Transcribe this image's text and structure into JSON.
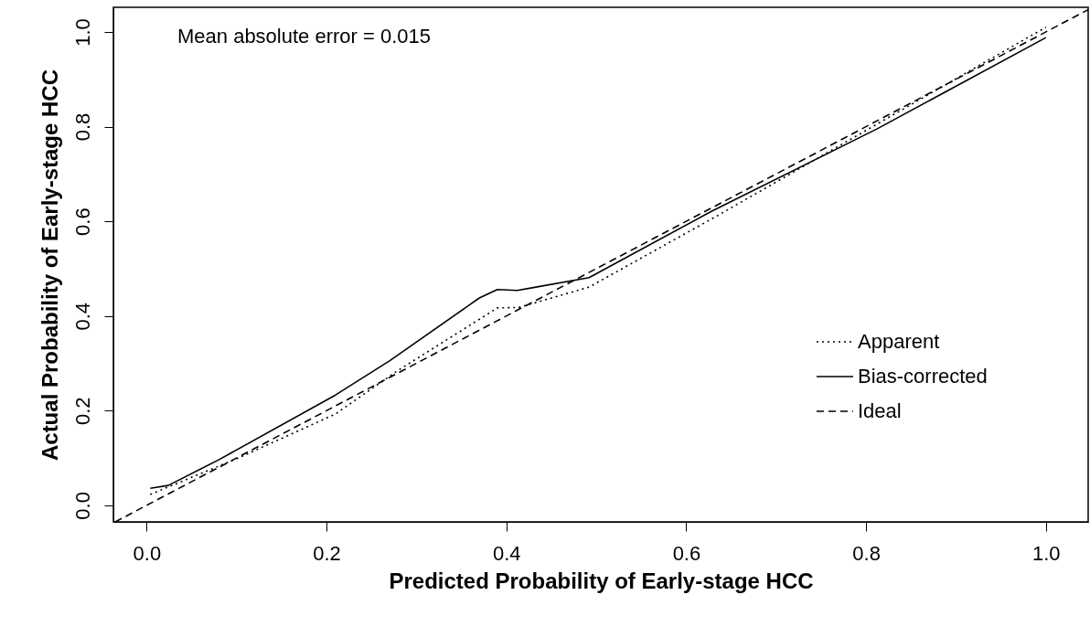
{
  "chart_data": {
    "type": "line",
    "xlabel": "Predicted Probability of Early-stage HCC",
    "ylabel": "Actual Probability of Early-stage HCC",
    "xlim": [
      -0.037,
      1.047
    ],
    "ylim": [
      -0.035,
      1.052
    ],
    "xticks": [
      {
        "value": 0,
        "label": "0.0"
      },
      {
        "value": 0.2,
        "label": "0.2"
      },
      {
        "value": 0.4,
        "label": "0.4"
      },
      {
        "value": 0.6,
        "label": "0.6"
      },
      {
        "value": 0.8,
        "label": "0.8"
      },
      {
        "value": 1,
        "label": "1.0"
      }
    ],
    "yticks": [
      {
        "value": 0,
        "label": "0.0"
      },
      {
        "value": 0.2,
        "label": "0.2"
      },
      {
        "value": 0.4,
        "label": "0.4"
      },
      {
        "value": 0.6,
        "label": "0.6"
      },
      {
        "value": 0.8,
        "label": "0.8"
      },
      {
        "value": 1,
        "label": "1.0"
      }
    ],
    "grid": false,
    "legend": "bottom right",
    "annotations": [
      "Mean absolute error = 0.015"
    ],
    "series": [
      {
        "name": "Apparent",
        "color": "#000000",
        "line_style": "dotted",
        "x": [
          0.004,
          0.102,
          0.21,
          0.278,
          0.39,
          0.414,
          0.492,
          0.633,
          1.0
        ],
        "values": [
          0.023,
          0.1,
          0.193,
          0.283,
          0.417,
          0.418,
          0.461,
          0.61,
          1.01
        ]
      },
      {
        "name": "Bias-corrected",
        "color": "#000000",
        "line_style": "solid",
        "x": [
          0.004,
          0.024,
          0.081,
          0.21,
          0.27,
          0.37,
          0.39,
          0.412,
          0.43,
          0.492,
          0.629,
          0.812,
          1.0
        ],
        "values": [
          0.036,
          0.042,
          0.097,
          0.233,
          0.305,
          0.438,
          0.456,
          0.454,
          0.46,
          0.481,
          0.622,
          0.795,
          0.988
        ]
      },
      {
        "name": "Ideal",
        "color": "#000000",
        "line_style": "dashed",
        "x": [
          -0.035,
          1.047
        ],
        "values": [
          -0.035,
          1.047
        ]
      }
    ]
  }
}
